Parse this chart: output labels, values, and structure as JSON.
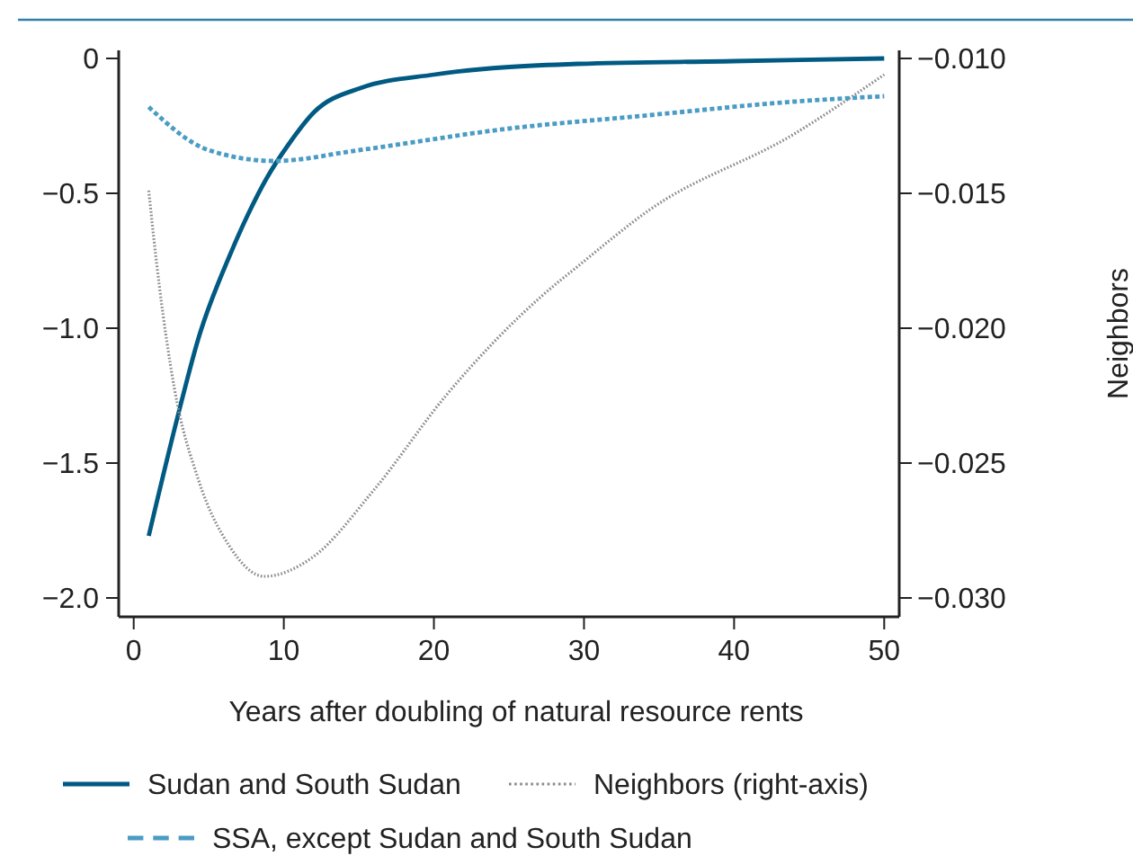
{
  "chart_data": {
    "type": "line",
    "xlabel": "Years after doubling of natural resource rents",
    "y2label": "Neighbors",
    "xlim": [
      -1,
      51
    ],
    "xticks": [
      0,
      10,
      20,
      30,
      40,
      50
    ],
    "ylim": [
      -2.07,
      0.03
    ],
    "yticks": [
      {
        "value": 0,
        "label": "0"
      },
      {
        "value": -0.5,
        "label": "−0.5"
      },
      {
        "value": -1,
        "label": "−1.0"
      },
      {
        "value": -1.5,
        "label": "−1.5"
      },
      {
        "value": -2,
        "label": "−2.0"
      }
    ],
    "y2lim": [
      -0.0307,
      -0.0097
    ],
    "y2ticks": [
      {
        "value": -0.01,
        "label": "−0.010"
      },
      {
        "value": -0.015,
        "label": "−0.015"
      },
      {
        "value": -0.02,
        "label": "−0.020"
      },
      {
        "value": -0.025,
        "label": "−0.025"
      },
      {
        "value": -0.03,
        "label": "−0.030"
      }
    ],
    "grid": false,
    "legend": "bottom",
    "series": [
      {
        "name": "Sudan and South Sudan",
        "color": "#005a82",
        "line_style": "solid",
        "x": [
          1,
          3.1,
          4.3,
          6.4,
          7.6,
          8.9,
          10.3,
          12,
          15.1,
          20,
          29.6,
          40,
          50
        ],
        "values": [
          -1.77,
          -1.29,
          -1.04,
          -0.73,
          -0.58,
          -0.44,
          -0.32,
          -0.2,
          -0.11,
          -0.06,
          -0.02,
          -0.01,
          0
        ]
      },
      {
        "name": "Neighbors (right-axis)",
        "color": "#8a8a8a",
        "line_style": "dotted",
        "axis": "y2",
        "x": [
          1,
          1.7,
          2.7,
          4.3,
          6.4,
          8.7,
          11.9,
          16,
          20.8,
          27.2,
          29.6,
          34.4,
          44,
          50
        ],
        "values": [
          -0.0149,
          -0.0184,
          -0.0222,
          -0.0256,
          -0.0281,
          -0.0292,
          -0.0285,
          -0.026,
          -0.0225,
          -0.0188,
          -0.0177,
          -0.0156,
          -0.0128,
          -0.0106
        ]
      },
      {
        "name": "SSA, except Sudan and South Sudan",
        "color": "#4a9cc4",
        "line_style": "dashed",
        "x": [
          1,
          5,
          9.4,
          15,
          25,
          34.4,
          44,
          50
        ],
        "values": [
          -0.18,
          -0.34,
          -0.38,
          -0.34,
          -0.26,
          -0.21,
          -0.16,
          -0.14
        ]
      }
    ]
  }
}
